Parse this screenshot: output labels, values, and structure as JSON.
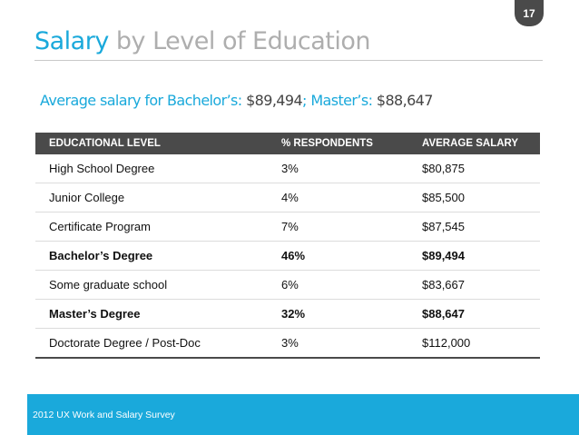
{
  "slide": {
    "page_number": "17",
    "title_accent": "Salary",
    "title_rest": " by Level of Education",
    "subtitle": {
      "bachelor_label": "Average salary for Bachelor’s:",
      "bachelor_value": " $89,494",
      "separator": ";",
      "master_label": " Master’s:",
      "master_value": " $88,647"
    },
    "footer": "2012 UX Work and Salary Survey"
  },
  "table": {
    "headers": [
      "EDUCATIONAL LEVEL",
      "% RESPONDENTS",
      "AVERAGE SALARY"
    ],
    "rows": [
      [
        "High School Degree",
        "3%",
        "$80,875"
      ],
      [
        "Junior College",
        "4%",
        "$85,500"
      ],
      [
        "Certificate Program",
        "7%",
        "$87,545"
      ],
      [
        "Bachelor’s Degree",
        "46%",
        "$89,494"
      ],
      [
        "Some graduate school",
        "6%",
        "$83,667"
      ],
      [
        "Master’s Degree",
        "32%",
        "$88,647"
      ],
      [
        "Doctorate Degree / Post-Doc",
        "3%",
        "$112,000"
      ]
    ]
  },
  "colors": {
    "accent": "#1aa9db",
    "header_bg": "#4a4a4a",
    "title_gray": "#aeaeae"
  }
}
